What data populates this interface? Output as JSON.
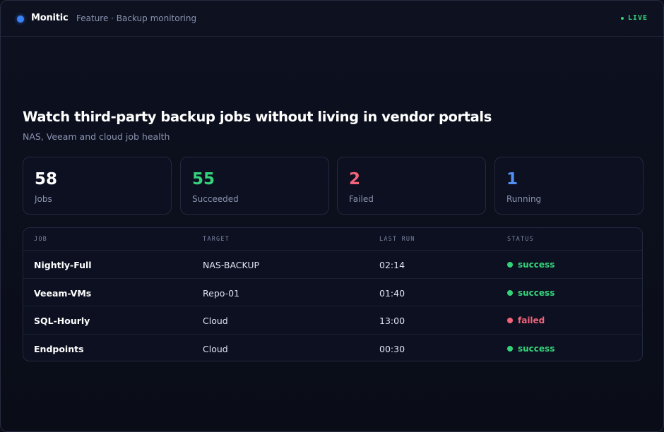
{
  "header": {
    "brand": "Monitic",
    "subtitle": "Feature · Backup monitoring",
    "live_label": "LIVE"
  },
  "hero": {
    "title": "Watch third-party backup jobs without living in vendor portals",
    "subtitle": "NAS, Veeam and cloud job health"
  },
  "stats": [
    {
      "value": "58",
      "label": "Jobs",
      "color": "#ffffff"
    },
    {
      "value": "55",
      "label": "Succeeded",
      "color": "#34d37a"
    },
    {
      "value": "2",
      "label": "Failed",
      "color": "#f2647a"
    },
    {
      "value": "1",
      "label": "Running",
      "color": "#4f8ff7"
    }
  ],
  "table": {
    "columns": [
      "JOB",
      "TARGET",
      "LAST RUN",
      "STATUS"
    ],
    "rows": [
      {
        "job": "Nightly-Full",
        "target": "NAS-BACKUP",
        "last_run": "02:14",
        "status": "success"
      },
      {
        "job": "Veeam-VMs",
        "target": "Repo-01",
        "last_run": "01:40",
        "status": "success"
      },
      {
        "job": "SQL-Hourly",
        "target": "Cloud",
        "last_run": "13:00",
        "status": "failed"
      },
      {
        "job": "Endpoints",
        "target": "Cloud",
        "last_run": "00:30",
        "status": "success"
      }
    ]
  },
  "colors": {
    "accent": "#3b82f6",
    "success": "#34d37a",
    "failed": "#f2647a",
    "running": "#4f8ff7"
  }
}
